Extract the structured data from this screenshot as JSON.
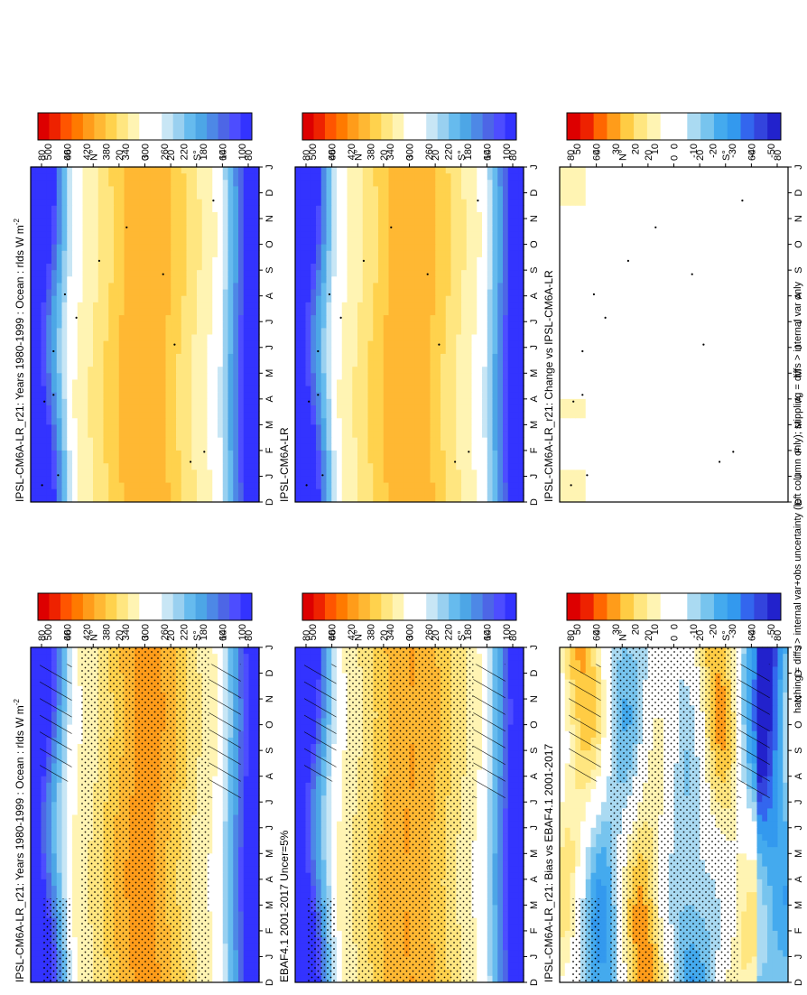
{
  "footer_note": "hatching = diffs > internal var+obs uncertainty (left column only); stippling = diffs > internal var only",
  "colors": {
    "abs_scale": [
      "#3333ff",
      "#4d4dff",
      "#4d66e6",
      "#4d88e6",
      "#4da6e6",
      "#66bbee",
      "#99d0f0",
      "#c8e6f5",
      "#ffffff",
      "#ffffff",
      "#fff4b3",
      "#ffe680",
      "#ffd24d",
      "#ffb833",
      "#ff9c1a",
      "#ff7a00",
      "#ff5500",
      "#ee2200",
      "#dd0000"
    ],
    "diff_scale": [
      "#2222cc",
      "#3344dd",
      "#3366ee",
      "#3399ee",
      "#44aaee",
      "#77c4ee",
      "#aadaf2",
      "#ffffff",
      "#ffffff",
      "#fff4b3",
      "#ffe680",
      "#ffcc44",
      "#ff9c1a",
      "#ff6600",
      "#ee2200",
      "#dd0000"
    ]
  },
  "chart_data": [
    {
      "type": "heatmap",
      "title": "IPSL-CM6A-LR_r21: Years 1980-1999 : Ocean : rlds W m",
      "title_sup": "-2",
      "x_ticks": [
        "D",
        "J",
        "F",
        "M",
        "A",
        "M",
        "J",
        "J",
        "A",
        "S",
        "O",
        "N",
        "D",
        "J"
      ],
      "y_ticks": [
        "80",
        "60",
        "N°",
        "20",
        "0",
        "20",
        "S°",
        "60",
        "80"
      ],
      "colorbar_labels": [
        "500",
        "460",
        "420",
        "380",
        "340",
        "300",
        "260",
        "220",
        "180",
        "140",
        "100"
      ],
      "value_range": [
        100,
        520
      ],
      "scale": "abs",
      "overlay": "hatch-stipple",
      "stipple": true
    },
    {
      "type": "heatmap",
      "title": "EBAF4.1 2001-2017 Uncer=5%",
      "title_sup": "",
      "x_ticks": [
        "D",
        "J",
        "F",
        "M",
        "A",
        "M",
        "J",
        "J",
        "A",
        "S",
        "O",
        "N",
        "D",
        "J"
      ],
      "y_ticks": [
        "80",
        "60",
        "N°",
        "20",
        "0",
        "20",
        "S°",
        "60",
        "80"
      ],
      "colorbar_labels": [
        "500",
        "460",
        "420",
        "380",
        "340",
        "300",
        "260",
        "220",
        "180",
        "140",
        "100"
      ],
      "value_range": [
        100,
        520
      ],
      "scale": "abs",
      "overlay": "hatch-stipple",
      "stipple": true
    },
    {
      "type": "heatmap",
      "title": "IPSL-CM6A-LR_r21: Bias vs EBAF4.1 2001-2017",
      "title_sup": "",
      "x_ticks": [
        "D",
        "J",
        "F",
        "M",
        "A",
        "M",
        "J",
        "J",
        "A",
        "S",
        "O",
        "N",
        "D",
        "J"
      ],
      "y_ticks": [
        "80",
        "60",
        "N°",
        "20",
        "0",
        "20",
        "S°",
        "60",
        "80"
      ],
      "colorbar_labels": [
        "50",
        "40",
        "30",
        "20",
        "10",
        "0",
        "-10",
        "-20",
        "-30",
        "-40",
        "-50"
      ],
      "value_range": [
        -60,
        60
      ],
      "scale": "diff",
      "overlay": "bias",
      "stipple": true
    },
    {
      "type": "heatmap",
      "title": "IPSL-CM6A-LR_r21: Years 1980-1999 : Ocean : rlds W m",
      "title_sup": "-2",
      "x_ticks": [
        "D",
        "J",
        "F",
        "M",
        "A",
        "M",
        "J",
        "J",
        "A",
        "S",
        "O",
        "N",
        "D",
        "J"
      ],
      "y_ticks": [
        "80",
        "60",
        "N°",
        "20",
        "0",
        "20",
        "S°",
        "60",
        "80"
      ],
      "colorbar_labels": [
        "500",
        "460",
        "420",
        "380",
        "340",
        "300",
        "260",
        "220",
        "180",
        "140",
        "100"
      ],
      "value_range": [
        100,
        520
      ],
      "scale": "abs",
      "overlay": "sparse",
      "stipple": false
    },
    {
      "type": "heatmap",
      "title": "IPSL-CM6A-LR",
      "title_sup": "",
      "x_ticks": [
        "D",
        "J",
        "F",
        "M",
        "A",
        "M",
        "J",
        "J",
        "A",
        "S",
        "O",
        "N",
        "D",
        "J"
      ],
      "y_ticks": [
        "80",
        "60",
        "N°",
        "20",
        "0",
        "20",
        "S°",
        "60",
        "80"
      ],
      "colorbar_labels": [
        "500",
        "460",
        "420",
        "380",
        "340",
        "300",
        "260",
        "220",
        "180",
        "140",
        "100"
      ],
      "value_range": [
        100,
        520
      ],
      "scale": "abs",
      "overlay": "sparse",
      "stipple": false
    },
    {
      "type": "heatmap",
      "title": "IPSL-CM6A-LR_r21: Change vs IPSL-CM6A-LR",
      "title_sup": "",
      "x_ticks": [
        "D",
        "J",
        "F",
        "M",
        "A",
        "M",
        "J",
        "J",
        "A",
        "S",
        "O",
        "N",
        "D",
        "J"
      ],
      "y_ticks": [
        "80",
        "60",
        "N°",
        "20",
        "0",
        "20",
        "S°",
        "60",
        "80"
      ],
      "colorbar_labels": [
        "50",
        "40",
        "30",
        "20",
        "10",
        "0",
        "-10",
        "-20",
        "-30",
        "-40",
        "-50"
      ],
      "value_range": [
        -60,
        60
      ],
      "scale": "diff",
      "overlay": "change",
      "stipple": false
    }
  ]
}
